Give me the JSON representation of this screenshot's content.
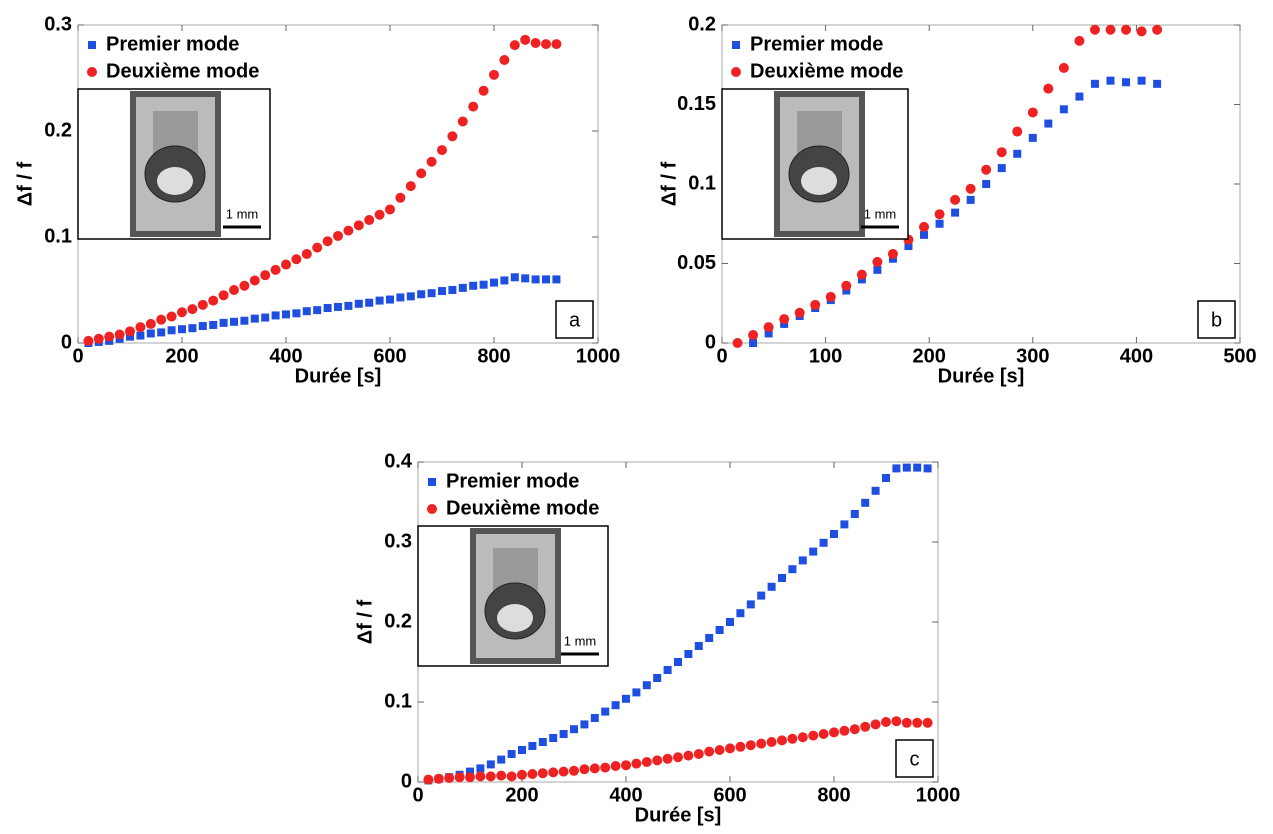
{
  "chart_data": [
    {
      "type": "scatter",
      "panel_label": "a",
      "inset_scale_label": "1 mm",
      "xlabel": "Durée [s]",
      "ylabel": "Δf / f",
      "xlim": [
        0,
        1000
      ],
      "ylim": [
        0,
        0.3
      ],
      "xticks": [
        0,
        200,
        400,
        600,
        800,
        1000
      ],
      "yticks": [
        0,
        0.1,
        0.2,
        0.3
      ],
      "grid": false,
      "legend": "upper left",
      "x": [
        20,
        40,
        60,
        80,
        100,
        120,
        140,
        160,
        180,
        200,
        220,
        240,
        260,
        280,
        300,
        320,
        340,
        360,
        380,
        400,
        420,
        440,
        460,
        480,
        500,
        520,
        540,
        560,
        580,
        600,
        620,
        640,
        660,
        680,
        700,
        720,
        740,
        760,
        780,
        800,
        820,
        840,
        860,
        880,
        900,
        920
      ],
      "series": [
        {
          "name": "Premier mode",
          "color": "#1f4fe0",
          "marker": "square",
          "values": [
            0.0,
            0.001,
            0.002,
            0.004,
            0.006,
            0.007,
            0.009,
            0.01,
            0.012,
            0.013,
            0.014,
            0.016,
            0.017,
            0.019,
            0.02,
            0.021,
            0.023,
            0.024,
            0.026,
            0.027,
            0.028,
            0.03,
            0.031,
            0.033,
            0.034,
            0.035,
            0.037,
            0.038,
            0.04,
            0.041,
            0.043,
            0.044,
            0.046,
            0.047,
            0.049,
            0.05,
            0.052,
            0.054,
            0.055,
            0.057,
            0.059,
            0.062,
            0.061,
            0.06,
            0.06,
            0.06
          ]
        },
        {
          "name": "Deuxième mode",
          "color": "#ee2222",
          "marker": "circle",
          "values": [
            0.002,
            0.004,
            0.006,
            0.008,
            0.011,
            0.015,
            0.018,
            0.022,
            0.025,
            0.029,
            0.032,
            0.036,
            0.04,
            0.045,
            0.05,
            0.054,
            0.059,
            0.064,
            0.069,
            0.074,
            0.079,
            0.084,
            0.09,
            0.096,
            0.101,
            0.106,
            0.111,
            0.116,
            0.121,
            0.126,
            0.137,
            0.148,
            0.16,
            0.171,
            0.182,
            0.195,
            0.209,
            0.223,
            0.238,
            0.253,
            0.267,
            0.281,
            0.286,
            0.283,
            0.282,
            0.282
          ]
        }
      ]
    },
    {
      "type": "scatter",
      "panel_label": "b",
      "inset_scale_label": "1 mm",
      "xlabel": "Durée [s]",
      "ylabel": "Δf / f",
      "xlim": [
        0,
        500
      ],
      "ylim": [
        0,
        0.2
      ],
      "xticks": [
        0,
        100,
        200,
        300,
        400,
        500
      ],
      "yticks": [
        0,
        0.05,
        0.1,
        0.15,
        0.2
      ],
      "grid": false,
      "legend": "upper left",
      "series": [
        {
          "name": "Premier mode",
          "color": "#1f4fe0",
          "marker": "square",
          "x": [
            30,
            45,
            60,
            75,
            90,
            105,
            120,
            135,
            150,
            165,
            180,
            195,
            210,
            225,
            240,
            255,
            270,
            285,
            300,
            315,
            330,
            345,
            360,
            375,
            390,
            405,
            420
          ],
          "values": [
            0,
            0.006,
            0.012,
            0.017,
            0.022,
            0.027,
            0.033,
            0.04,
            0.046,
            0.053,
            0.061,
            0.068,
            0.075,
            0.082,
            0.09,
            0.1,
            0.11,
            0.119,
            0.129,
            0.138,
            0.147,
            0.155,
            0.163,
            0.165,
            0.164,
            0.165,
            0.163
          ]
        },
        {
          "name": "Deuxième mode",
          "color": "#ee2222",
          "marker": "circle",
          "x": [
            15,
            30,
            45,
            60,
            75,
            90,
            105,
            120,
            135,
            150,
            165,
            180,
            195,
            210,
            225,
            240,
            255,
            270,
            285,
            300,
            315,
            330,
            345,
            360,
            375,
            390,
            405,
            420
          ],
          "values": [
            0,
            0.005,
            0.01,
            0.015,
            0.019,
            0.024,
            0.029,
            0.036,
            0.043,
            0.051,
            0.056,
            0.065,
            0.073,
            0.081,
            0.09,
            0.097,
            0.109,
            0.12,
            0.133,
            0.145,
            0.16,
            0.173,
            0.19,
            0.197,
            0.197,
            0.197,
            0.196,
            0.197
          ]
        }
      ]
    },
    {
      "type": "scatter",
      "panel_label": "c",
      "inset_scale_label": "1 mm",
      "xlabel": "Durée [s]",
      "ylabel": "Δf / f",
      "xlim": [
        0,
        1000
      ],
      "ylim": [
        0,
        0.4
      ],
      "xticks": [
        0,
        200,
        400,
        600,
        800,
        1000
      ],
      "yticks": [
        0,
        0.1,
        0.2,
        0.3,
        0.4
      ],
      "grid": false,
      "legend": "upper left",
      "x": [
        20,
        40,
        60,
        80,
        100,
        120,
        140,
        160,
        180,
        200,
        220,
        240,
        260,
        280,
        300,
        320,
        340,
        360,
        380,
        400,
        420,
        440,
        460,
        480,
        500,
        520,
        540,
        560,
        580,
        600,
        620,
        640,
        660,
        680,
        700,
        720,
        740,
        760,
        780,
        800,
        820,
        840,
        860,
        880,
        900,
        920,
        940,
        960,
        980
      ],
      "series": [
        {
          "name": "Premier mode",
          "color": "#1f4fe0",
          "marker": "square",
          "values": [
            0.002,
            0.004,
            0.006,
            0.009,
            0.013,
            0.017,
            0.022,
            0.028,
            0.035,
            0.04,
            0.045,
            0.05,
            0.055,
            0.06,
            0.066,
            0.072,
            0.08,
            0.088,
            0.096,
            0.104,
            0.112,
            0.121,
            0.13,
            0.14,
            0.15,
            0.16,
            0.17,
            0.18,
            0.19,
            0.2,
            0.211,
            0.222,
            0.233,
            0.244,
            0.255,
            0.266,
            0.277,
            0.288,
            0.299,
            0.31,
            0.322,
            0.335,
            0.349,
            0.364,
            0.38,
            0.392,
            0.393,
            0.393,
            0.392
          ]
        },
        {
          "name": "Deuxième mode",
          "color": "#ee2222",
          "marker": "circle",
          "values": [
            0.003,
            0.004,
            0.005,
            0.006,
            0.006,
            0.007,
            0.007,
            0.008,
            0.007,
            0.009,
            0.01,
            0.011,
            0.012,
            0.013,
            0.014,
            0.016,
            0.017,
            0.018,
            0.02,
            0.021,
            0.023,
            0.025,
            0.027,
            0.029,
            0.031,
            0.033,
            0.035,
            0.038,
            0.04,
            0.042,
            0.044,
            0.046,
            0.048,
            0.05,
            0.052,
            0.054,
            0.056,
            0.058,
            0.06,
            0.062,
            0.064,
            0.066,
            0.069,
            0.072,
            0.075,
            0.076,
            0.074,
            0.074,
            0.074
          ]
        }
      ]
    }
  ]
}
